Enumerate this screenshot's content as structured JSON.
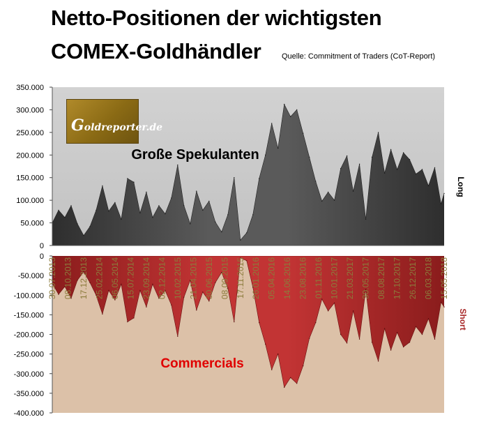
{
  "title_line1": "Netto-Positionen der wichtigsten",
  "title_line2": "COMEX-Goldhändler",
  "source": "Quelle: Commitment of Traders (CoT-Report)",
  "logo": {
    "text": "Goldreporter.de"
  },
  "colors": {
    "upper_bg": "#c8c8c8",
    "lower_bg": "#dcc1a8",
    "long_area": "#3e3e3e",
    "short_area": "#a82828",
    "commercials_text": "#e00000",
    "date_labels": "#8c7c3c"
  },
  "chart_data": [
    {
      "type": "area",
      "series_name": "Große Spekulanten",
      "axis_side_label": "Long",
      "ylim": [
        0,
        350000
      ],
      "y_ticks": [
        "350.000",
        "300.000",
        "250.000",
        "200.000",
        "150.000",
        "100.000",
        "50.000",
        "0"
      ],
      "x_start": "30.07.2013",
      "x_end": "15.05.2018",
      "x": [
        "2013-07-30",
        "2013-08-27",
        "2013-09-24",
        "2013-10-22",
        "2013-11-19",
        "2013-12-17",
        "2014-01-14",
        "2014-02-11",
        "2014-03-11",
        "2014-04-08",
        "2014-05-06",
        "2014-06-03",
        "2014-07-01",
        "2014-07-29",
        "2014-08-26",
        "2014-09-23",
        "2014-10-21",
        "2014-11-18",
        "2014-12-16",
        "2015-01-13",
        "2015-02-10",
        "2015-03-10",
        "2015-04-07",
        "2015-05-05",
        "2015-06-02",
        "2015-06-30",
        "2015-07-28",
        "2015-08-25",
        "2015-09-22",
        "2015-10-20",
        "2015-11-17",
        "2015-12-15",
        "2016-01-12",
        "2016-02-09",
        "2016-03-08",
        "2016-04-05",
        "2016-05-03",
        "2016-05-31",
        "2016-06-28",
        "2016-07-26",
        "2016-08-23",
        "2016-09-20",
        "2016-10-18",
        "2016-11-15",
        "2016-12-13",
        "2017-01-10",
        "2017-02-07",
        "2017-03-07",
        "2017-04-04",
        "2017-05-02",
        "2017-05-30",
        "2017-06-27",
        "2017-07-25",
        "2017-08-22",
        "2017-09-19",
        "2017-10-17",
        "2017-11-14",
        "2017-12-12",
        "2018-01-09",
        "2018-02-06",
        "2018-03-06",
        "2018-04-03",
        "2018-05-01",
        "2018-05-15"
      ],
      "values": [
        50000,
        78000,
        62000,
        88000,
        48000,
        22000,
        42000,
        78000,
        132000,
        76000,
        95000,
        58000,
        148000,
        140000,
        72000,
        118000,
        62000,
        88000,
        70000,
        105000,
        178000,
        88000,
        48000,
        120000,
        78000,
        98000,
        52000,
        30000,
        68000,
        150000,
        12000,
        28000,
        68000,
        148000,
        200000,
        270000,
        215000,
        312000,
        285000,
        300000,
        248000,
        195000,
        142000,
        98000,
        118000,
        100000,
        170000,
        198000,
        120000,
        180000,
        58000,
        195000,
        250000,
        160000,
        212000,
        168000,
        205000,
        190000,
        158000,
        168000,
        132000,
        172000,
        92000,
        115000
      ],
      "annotation": "Große Spekulanten"
    },
    {
      "type": "area",
      "series_name": "Commercials",
      "axis_side_label": "Short",
      "ylim": [
        -400000,
        0
      ],
      "y_ticks": [
        "0",
        "-50.000",
        "-100.000",
        "-150.000",
        "-200.000",
        "-250.000",
        "-300.000",
        "-350.000",
        "-400.000"
      ],
      "x_start": "30.07.2013",
      "x_end": "15.05.2018",
      "x_labels": [
        "30.07.2013",
        "08.10.2013",
        "17.12.2013",
        "25.02.2014",
        "06.05.2014",
        "15.07.2014",
        "23.09.2014",
        "02.12.2014",
        "10.02.2015",
        "21.04.2015",
        "30.06.2015",
        "08.09.2015",
        "17.11.2015",
        "26.01.2016",
        "05.04.2016",
        "14.06.2016",
        "23.08.2016",
        "01.11.2016",
        "10.01.2017",
        "21.03.2017",
        "30.05.2017",
        "08.08.2017",
        "17.10.2017",
        "26.12.2017",
        "06.03.2018",
        "15.05.2018"
      ],
      "x": [
        "2013-07-30",
        "2013-08-27",
        "2013-09-24",
        "2013-10-22",
        "2013-11-19",
        "2013-12-17",
        "2014-01-14",
        "2014-02-11",
        "2014-03-11",
        "2014-04-08",
        "2014-05-06",
        "2014-06-03",
        "2014-07-01",
        "2014-07-29",
        "2014-08-26",
        "2014-09-23",
        "2014-10-21",
        "2014-11-18",
        "2014-12-16",
        "2015-01-13",
        "2015-02-10",
        "2015-03-10",
        "2015-04-07",
        "2015-05-05",
        "2015-06-02",
        "2015-06-30",
        "2015-07-28",
        "2015-08-25",
        "2015-09-22",
        "2015-10-20",
        "2015-11-17",
        "2015-12-15",
        "2016-01-12",
        "2016-02-09",
        "2016-03-08",
        "2016-04-05",
        "2016-05-03",
        "2016-05-31",
        "2016-06-28",
        "2016-07-26",
        "2016-08-23",
        "2016-09-20",
        "2016-10-18",
        "2016-11-15",
        "2016-12-13",
        "2017-01-10",
        "2017-02-07",
        "2017-03-07",
        "2017-04-04",
        "2017-05-02",
        "2017-05-30",
        "2017-06-27",
        "2017-07-25",
        "2017-08-22",
        "2017-09-19",
        "2017-10-17",
        "2017-11-14",
        "2017-12-12",
        "2018-01-09",
        "2018-02-06",
        "2018-03-06",
        "2018-04-03",
        "2018-05-01",
        "2018-05-15"
      ],
      "values": [
        -70000,
        -98000,
        -78000,
        -108000,
        -62000,
        -40000,
        -68000,
        -100000,
        -148000,
        -88000,
        -112000,
        -72000,
        -168000,
        -158000,
        -88000,
        -130000,
        -72000,
        -108000,
        -88000,
        -125000,
        -205000,
        -105000,
        -62000,
        -138000,
        -92000,
        -115000,
        -68000,
        -42000,
        -82000,
        -168000,
        -5000,
        -12000,
        -80000,
        -170000,
        -225000,
        -290000,
        -250000,
        -335000,
        -310000,
        -325000,
        -280000,
        -210000,
        -170000,
        -110000,
        -140000,
        -120000,
        -200000,
        -222000,
        -140000,
        -212000,
        -85000,
        -220000,
        -268000,
        -185000,
        -240000,
        -195000,
        -232000,
        -220000,
        -180000,
        -200000,
        -160000,
        -212000,
        -118000,
        -130000
      ],
      "annotation": "Commercials"
    }
  ]
}
